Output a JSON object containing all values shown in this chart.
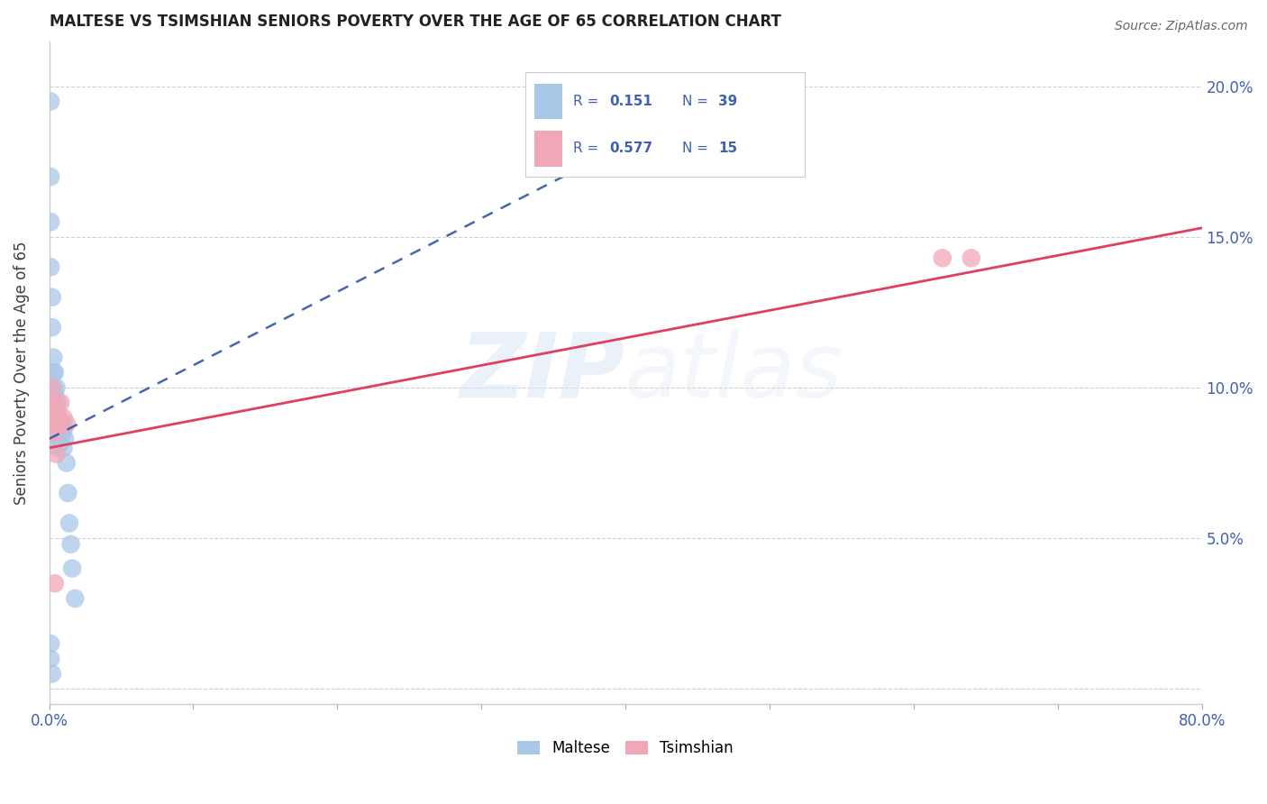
{
  "title": "MALTESE VS TSIMSHIAN SENIORS POVERTY OVER THE AGE OF 65 CORRELATION CHART",
  "source": "Source: ZipAtlas.com",
  "ylabel": "Seniors Poverty Over the Age of 65",
  "xlim": [
    0.0,
    0.8
  ],
  "ylim": [
    -0.005,
    0.215
  ],
  "yticks": [
    0.0,
    0.05,
    0.1,
    0.15,
    0.2
  ],
  "ytick_labels": [
    "",
    "5.0%",
    "10.0%",
    "15.0%",
    "20.0%"
  ],
  "xticks": [
    0.0,
    0.1,
    0.2,
    0.3,
    0.4,
    0.5,
    0.6,
    0.7,
    0.8
  ],
  "xtick_labels": [
    "0.0%",
    "",
    "",
    "",
    "",
    "",
    "",
    "",
    "80.0%"
  ],
  "maltese_R": 0.151,
  "maltese_N": 39,
  "tsimshian_R": 0.577,
  "tsimshian_N": 15,
  "maltese_color": "#a8c8e8",
  "tsimshian_color": "#f0a8b8",
  "maltese_line_color": "#3355aa",
  "tsimshian_line_color": "#e04060",
  "maltese_scatter_x": [
    0.001,
    0.001,
    0.001,
    0.001,
    0.002,
    0.002,
    0.002,
    0.003,
    0.003,
    0.003,
    0.003,
    0.004,
    0.004,
    0.004,
    0.005,
    0.005,
    0.005,
    0.006,
    0.006,
    0.006,
    0.006,
    0.007,
    0.007,
    0.008,
    0.008,
    0.009,
    0.009,
    0.01,
    0.01,
    0.011,
    0.012,
    0.013,
    0.014,
    0.015,
    0.016,
    0.018,
    0.001,
    0.001,
    0.002
  ],
  "maltese_scatter_y": [
    0.195,
    0.17,
    0.155,
    0.14,
    0.13,
    0.12,
    0.095,
    0.11,
    0.105,
    0.1,
    0.088,
    0.105,
    0.098,
    0.09,
    0.1,
    0.094,
    0.088,
    0.095,
    0.09,
    0.086,
    0.08,
    0.088,
    0.082,
    0.087,
    0.082,
    0.088,
    0.084,
    0.086,
    0.08,
    0.083,
    0.075,
    0.065,
    0.055,
    0.048,
    0.04,
    0.03,
    0.015,
    0.01,
    0.005
  ],
  "tsimshian_scatter_x": [
    0.001,
    0.002,
    0.002,
    0.003,
    0.004,
    0.004,
    0.005,
    0.005,
    0.007,
    0.008,
    0.01,
    0.012,
    0.62,
    0.64,
    0.004
  ],
  "tsimshian_scatter_y": [
    0.095,
    0.1,
    0.09,
    0.095,
    0.092,
    0.085,
    0.088,
    0.078,
    0.09,
    0.095,
    0.09,
    0.088,
    0.143,
    0.143,
    0.035
  ],
  "maltese_trend_x": [
    0.0,
    0.5
  ],
  "maltese_trend_y": [
    0.083,
    0.205
  ],
  "tsimshian_trend_x": [
    0.0,
    0.8
  ],
  "tsimshian_trend_y": [
    0.08,
    0.153
  ],
  "watermark_zip": "ZIP",
  "watermark_atlas": "atlas",
  "background_color": "#ffffff",
  "grid_color": "#d0d0d0",
  "tick_color": "#4060b0",
  "label_color": "#404040"
}
